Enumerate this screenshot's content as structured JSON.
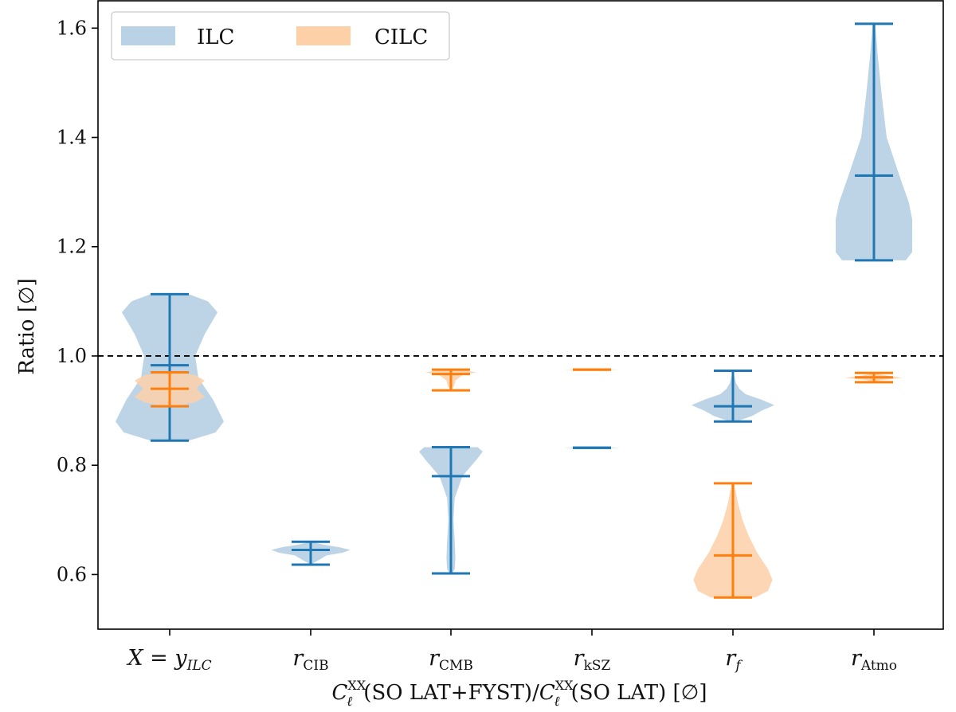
{
  "chart_data": {
    "type": "violin",
    "categories": [
      {
        "main": "X = y",
        "sub": "ILC",
        "italic_sub": true
      },
      {
        "main": "r",
        "sub": "CIB"
      },
      {
        "main": "r",
        "sub": "CMB"
      },
      {
        "main": "r",
        "sub": "kSZ"
      },
      {
        "main": "r",
        "sub": "f",
        "italic_sub": true
      },
      {
        "main": "r",
        "sub": "Atmo"
      }
    ],
    "ylabel": "Ratio [∅]",
    "xlabel": {
      "parts": [
        "C",
        "(SO LAT+FYST)/",
        "C",
        "(SO LAT) [∅]"
      ],
      "superscript": "XX",
      "subscript": "ℓ"
    },
    "ylim": [
      0.5,
      1.65
    ],
    "yticks": [
      "0.6",
      "0.8",
      "1.0",
      "1.2",
      "1.4",
      "1.6"
    ],
    "reference_line": {
      "y": 1.0,
      "style": "dashed",
      "color": "#000000"
    },
    "legend": {
      "position": "top-left",
      "entries": [
        "ILC",
        "CILC"
      ]
    },
    "colors": {
      "ILC_fill": "#b9d2e6",
      "ILC_line": "#1f77b4",
      "CILC_fill": "#fdd0a8",
      "CILC_line": "#ff7f0e"
    },
    "series": [
      {
        "name": "ILC",
        "violins": [
          {
            "min": 0.845,
            "max": 1.113,
            "median": 0.983,
            "profile": [
              [
                0.845,
                0.3
              ],
              [
                0.86,
                0.72
              ],
              [
                0.88,
                0.85
              ],
              [
                0.92,
                0.68
              ],
              [
                0.96,
                0.45
              ],
              [
                1.0,
                0.4
              ],
              [
                1.04,
                0.55
              ],
              [
                1.08,
                0.75
              ],
              [
                1.1,
                0.6
              ],
              [
                1.113,
                0.3
              ]
            ]
          },
          {
            "min": 0.618,
            "max": 0.66,
            "median": 0.645,
            "profile": [
              [
                0.618,
                0.0
              ],
              [
                0.635,
                0.25
              ],
              [
                0.64,
                0.5
              ],
              [
                0.645,
                0.62
              ],
              [
                0.65,
                0.45
              ],
              [
                0.655,
                0.18
              ],
              [
                0.66,
                0.0
              ]
            ]
          },
          {
            "min": 0.602,
            "max": 0.833,
            "median": 0.78,
            "profile": [
              [
                0.602,
                0.02
              ],
              [
                0.61,
                0.06
              ],
              [
                0.63,
                0.07
              ],
              [
                0.66,
                0.06
              ],
              [
                0.7,
                0.04
              ],
              [
                0.74,
                0.06
              ],
              [
                0.78,
                0.18
              ],
              [
                0.81,
                0.4
              ],
              [
                0.825,
                0.5
              ],
              [
                0.833,
                0.42
              ]
            ]
          },
          {
            "min": 0.832,
            "max": 0.832,
            "median": 0.832,
            "flat": 0.45
          },
          {
            "min": 0.88,
            "max": 0.973,
            "median": 0.908,
            "profile": [
              [
                0.88,
                0.05
              ],
              [
                0.89,
                0.3
              ],
              [
                0.9,
                0.45
              ],
              [
                0.91,
                0.65
              ],
              [
                0.92,
                0.45
              ],
              [
                0.93,
                0.2
              ],
              [
                0.94,
                0.1
              ],
              [
                0.95,
                0.05
              ],
              [
                0.973,
                0.0
              ]
            ]
          },
          {
            "min": 1.175,
            "max": 1.608,
            "median": 1.33,
            "profile": [
              [
                1.175,
                0.5
              ],
              [
                1.19,
                0.6
              ],
              [
                1.22,
                0.6
              ],
              [
                1.25,
                0.6
              ],
              [
                1.28,
                0.55
              ],
              [
                1.33,
                0.4
              ],
              [
                1.4,
                0.2
              ],
              [
                1.48,
                0.12
              ],
              [
                1.55,
                0.06
              ],
              [
                1.608,
                0.02
              ]
            ]
          }
        ]
      },
      {
        "name": "CILC",
        "violins": [
          {
            "min": 0.908,
            "max": 0.97,
            "median": 0.94,
            "profile": [
              [
                0.908,
                0.05
              ],
              [
                0.915,
                0.4
              ],
              [
                0.925,
                0.55
              ],
              [
                0.94,
                0.42
              ],
              [
                0.955,
                0.55
              ],
              [
                0.965,
                0.4
              ],
              [
                0.97,
                0.05
              ]
            ]
          },
          null,
          {
            "min": 0.937,
            "max": 0.975,
            "median": 0.967,
            "profile": [
              [
                0.937,
                0.0
              ],
              [
                0.945,
                0.05
              ],
              [
                0.955,
                0.07
              ],
              [
                0.965,
                0.18
              ],
              [
                0.97,
                0.4
              ],
              [
                0.975,
                0.15
              ]
            ]
          },
          {
            "min": 0.975,
            "max": 0.975,
            "median": 0.975,
            "flat": 0.45
          },
          {
            "min": 0.558,
            "max": 0.767,
            "median": 0.635,
            "profile": [
              [
                0.558,
                0.35
              ],
              [
                0.57,
                0.55
              ],
              [
                0.59,
                0.62
              ],
              [
                0.61,
                0.55
              ],
              [
                0.64,
                0.38
              ],
              [
                0.67,
                0.25
              ],
              [
                0.7,
                0.15
              ],
              [
                0.73,
                0.08
              ],
              [
                0.767,
                0.02
              ]
            ]
          },
          {
            "min": 0.952,
            "max": 0.969,
            "median": 0.961,
            "profile": [
              [
                0.952,
                0.0
              ],
              [
                0.956,
                0.12
              ],
              [
                0.96,
                0.45
              ],
              [
                0.964,
                0.2
              ],
              [
                0.969,
                0.0
              ]
            ]
          }
        ]
      }
    ]
  }
}
